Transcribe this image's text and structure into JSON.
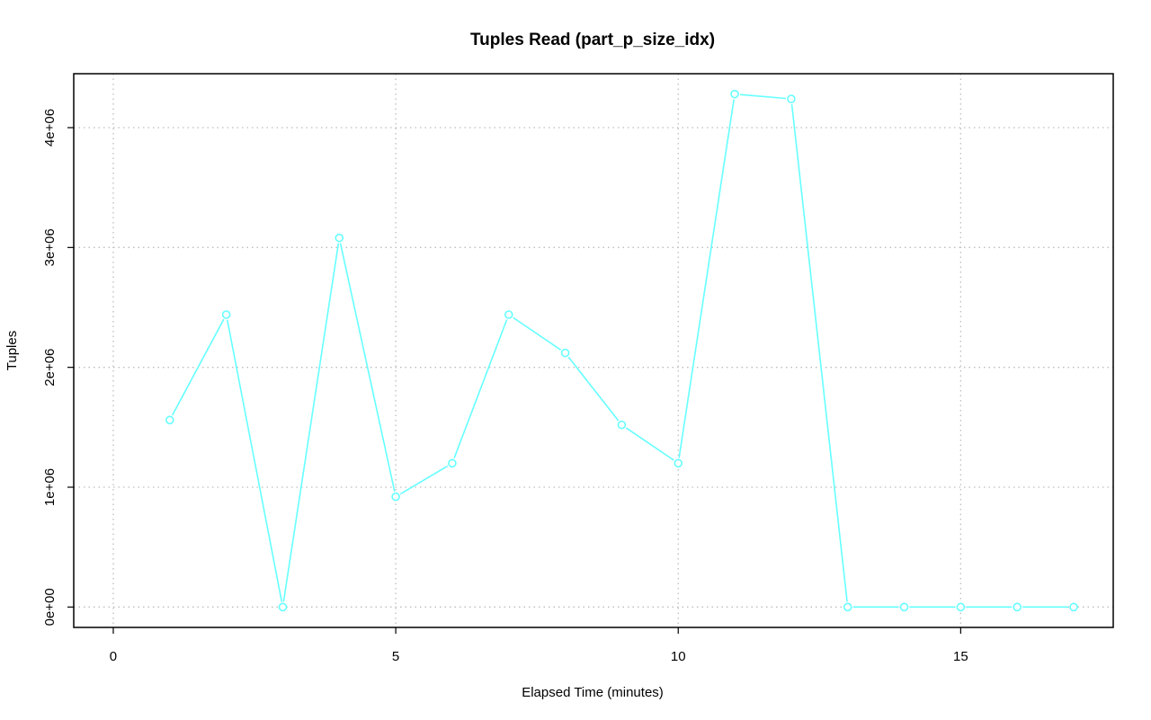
{
  "chart_data": {
    "type": "line",
    "title": "Tuples Read (part_p_size_idx)",
    "xlabel": "Elapsed Time (minutes)",
    "ylabel": "Tuples",
    "xlim": [
      -0.7,
      17.7
    ],
    "ylim": [
      -170000,
      4450000
    ],
    "x_ticks": [
      0,
      5,
      10,
      15
    ],
    "x_tick_labels": [
      "0",
      "5",
      "10",
      "15"
    ],
    "y_ticks": [
      0,
      1000000,
      2000000,
      3000000,
      4000000
    ],
    "y_tick_labels": [
      "0e+00",
      "1e+06",
      "2e+06",
      "3e+06",
      "4e+06"
    ],
    "grid": true,
    "legend": "none",
    "series": [
      {
        "color": "#66ffff",
        "marker": "open-circle",
        "x": [
          1,
          2,
          3,
          4,
          5,
          6,
          7,
          8,
          9,
          10,
          11,
          12,
          13,
          14,
          15,
          16,
          17
        ],
        "values": [
          1560000,
          2440000,
          0,
          3080000,
          920000,
          1200000,
          2440000,
          2120000,
          1520000,
          1200000,
          4280000,
          4240000,
          0,
          0,
          0,
          0,
          0
        ]
      }
    ]
  }
}
